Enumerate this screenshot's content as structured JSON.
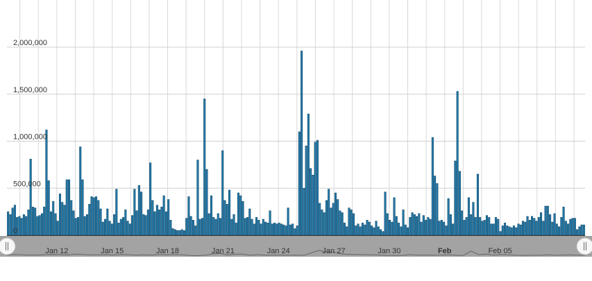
{
  "chart_data": {
    "type": "bar",
    "title": "",
    "xlabel": "",
    "ylabel": "",
    "ylim": [
      0,
      2000000
    ],
    "grid": true,
    "legend": "none",
    "y_ticks": [
      {
        "value": 0,
        "label": "0"
      },
      {
        "value": 500000,
        "label": "500,000"
      },
      {
        "value": 1000000,
        "label": "1,000,000"
      },
      {
        "value": 1500000,
        "label": "1,500,000"
      },
      {
        "value": 2000000,
        "label": "2,000,000"
      }
    ],
    "x_range_days": [
      9.3,
      40.6
    ],
    "x_ticks": [
      {
        "day": 12,
        "label": "Jan 12",
        "bold": false
      },
      {
        "day": 15,
        "label": "Jan 15",
        "bold": false
      },
      {
        "day": 18,
        "label": "Jan 18",
        "bold": false
      },
      {
        "day": 21,
        "label": "Jan 21",
        "bold": false
      },
      {
        "day": 24,
        "label": "Jan 24",
        "bold": false
      },
      {
        "day": 27,
        "label": "Jan 27",
        "bold": false
      },
      {
        "day": 30,
        "label": "Jan 30",
        "bold": false
      },
      {
        "day": 33,
        "label": "Feb",
        "bold": true
      },
      {
        "day": 36,
        "label": "Feb 05",
        "bold": false
      }
    ],
    "series": [
      {
        "color": "#2479a8",
        "values": [
          250000,
          220000,
          290000,
          320000,
          190000,
          200000,
          180000,
          220000,
          200000,
          270000,
          810000,
          300000,
          290000,
          200000,
          210000,
          230000,
          300000,
          1120000,
          580000,
          250000,
          360000,
          230000,
          150000,
          440000,
          350000,
          320000,
          590000,
          590000,
          370000,
          260000,
          180000,
          190000,
          940000,
          590000,
          200000,
          220000,
          330000,
          410000,
          400000,
          410000,
          370000,
          280000,
          140000,
          170000,
          280000,
          150000,
          120000,
          220000,
          490000,
          130000,
          170000,
          190000,
          270000,
          150000,
          120000,
          210000,
          490000,
          260000,
          530000,
          460000,
          220000,
          210000,
          270000,
          770000,
          370000,
          250000,
          320000,
          270000,
          300000,
          420000,
          250000,
          380000,
          160000,
          70000,
          60000,
          50000,
          50000,
          60000,
          50000,
          180000,
          410000,
          200000,
          160000,
          100000,
          800000,
          170000,
          180000,
          1450000,
          700000,
          230000,
          420000,
          190000,
          170000,
          230000,
          180000,
          900000,
          370000,
          330000,
          480000,
          170000,
          220000,
          130000,
          450000,
          420000,
          360000,
          180000,
          190000,
          280000,
          170000,
          120000,
          190000,
          160000,
          120000,
          170000,
          140000,
          130000,
          260000,
          120000,
          130000,
          120000,
          130000,
          120000,
          110000,
          100000,
          290000,
          110000,
          120000,
          70000,
          100000,
          1100000,
          1960000,
          500000,
          950000,
          1290000,
          710000,
          640000,
          990000,
          1010000,
          340000,
          270000,
          240000,
          370000,
          490000,
          290000,
          340000,
          450000,
          380000,
          260000,
          240000,
          130000,
          90000,
          290000,
          270000,
          230000,
          100000,
          120000,
          90000,
          130000,
          110000,
          160000,
          140000,
          100000,
          80000,
          150000,
          90000,
          60000,
          40000,
          460000,
          230000,
          160000,
          140000,
          400000,
          200000,
          130000,
          90000,
          270000,
          110000,
          80000,
          190000,
          240000,
          220000,
          200000,
          230000,
          140000,
          210000,
          160000,
          190000,
          170000,
          1040000,
          630000,
          550000,
          150000,
          160000,
          140000,
          100000,
          390000,
          220000,
          120000,
          790000,
          1530000,
          680000,
          260000,
          160000,
          190000,
          400000,
          220000,
          350000,
          190000,
          650000,
          190000,
          150000,
          160000,
          210000,
          190000,
          120000,
          120000,
          190000,
          170000,
          40000,
          100000,
          130000,
          100000,
          90000,
          80000,
          100000,
          80000,
          120000,
          110000,
          150000,
          140000,
          200000,
          160000,
          200000,
          180000,
          150000,
          190000,
          240000,
          150000,
          310000,
          310000,
          220000,
          140000,
          230000,
          120000,
          90000,
          190000,
          300000,
          150000,
          120000,
          170000,
          180000,
          180000,
          60000,
          90000,
          110000,
          110000
        ]
      }
    ],
    "navigator": {
      "values": [
        150000,
        230000,
        200000,
        150000,
        160000,
        220000,
        260000,
        230000,
        180000,
        300000,
        240000,
        200000,
        200000,
        220000,
        150000,
        250000,
        220000,
        140000,
        200000,
        160000,
        250000,
        200000,
        240000,
        210000,
        100000,
        50000,
        120000,
        330000,
        420000,
        170000,
        300000,
        300000,
        120000,
        220000,
        120000,
        160000,
        150000,
        120000,
        150000,
        100000,
        500000,
        900000,
        700000,
        600000,
        300000,
        280000,
        240000,
        220000,
        200000,
        150000,
        100000,
        100000,
        100000,
        220000,
        140000,
        160000,
        140000,
        150000,
        200000,
        120000,
        100000,
        800000,
        220000,
        300000,
        120000,
        260000,
        200000,
        120000,
        100000,
        120000,
        120000,
        200000,
        120000,
        150000,
        200000,
        120000,
        130000
      ]
    }
  }
}
